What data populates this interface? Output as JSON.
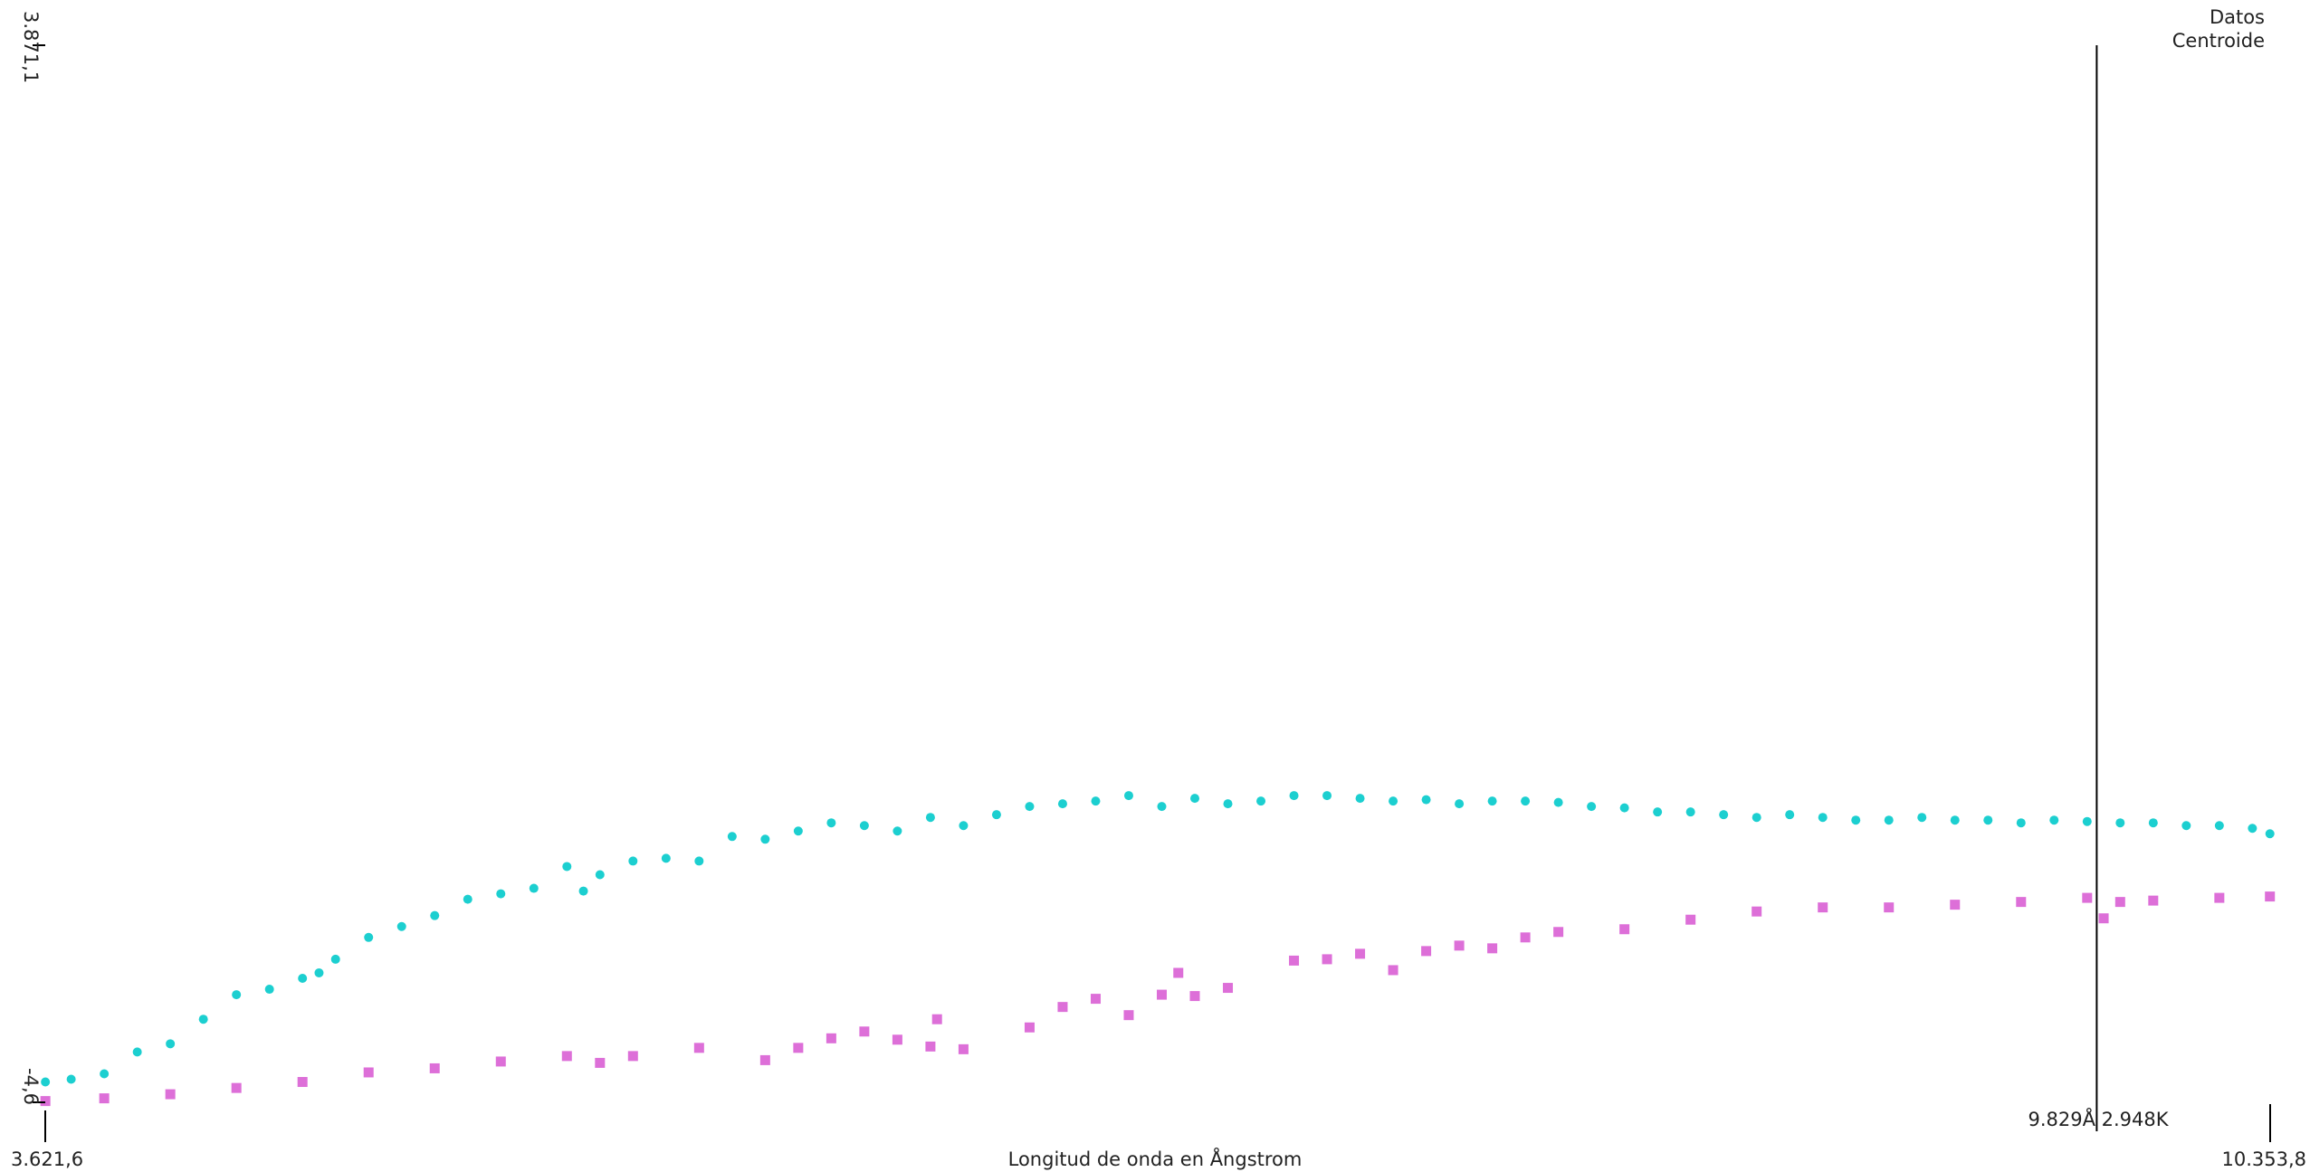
{
  "chart_data": {
    "type": "scatter",
    "title": "",
    "xlabel": "Longitud de onda en Ångstrom",
    "ylabel": "",
    "xlim": [
      3621.6,
      10353.8
    ],
    "ylim": [
      -4.6,
      3871.1
    ],
    "x_min_label": "3.621,6",
    "x_max_label": "10.353,8",
    "y_min_label": "-4,6",
    "y_max_label": "3.871,1",
    "cursor": {
      "x": 9829,
      "label": "9.829Å 2.948K"
    },
    "grid": false,
    "legend_position": "top-right",
    "series": [
      {
        "name": "Datos",
        "color": "#dd6fd8",
        "marker": "square",
        "x": [
          3622,
          3800,
          4000,
          4200,
          4400,
          4600,
          4800,
          5000,
          5200,
          5300,
          5400,
          5600,
          5800,
          5900,
          6000,
          6100,
          6200,
          6300,
          6320,
          6400,
          6600,
          6700,
          6800,
          6900,
          7000,
          7050,
          7100,
          7200,
          7400,
          7500,
          7600,
          7700,
          7800,
          7900,
          8000,
          8100,
          8200,
          8400,
          8600,
          8800,
          9000,
          9200,
          9400,
          9600,
          9800,
          9850,
          9900,
          10000,
          10200,
          10353
        ],
        "values": [
          0,
          10,
          25,
          48,
          70,
          105,
          120,
          145,
          165,
          140,
          165,
          195,
          150,
          195,
          230,
          255,
          225,
          200,
          300,
          190,
          270,
          345,
          375,
          315,
          390,
          470,
          385,
          415,
          515,
          520,
          540,
          480,
          550,
          570,
          560,
          600,
          620,
          630,
          665,
          695,
          710,
          710,
          720,
          730,
          745,
          670,
          730,
          735,
          745,
          750
        ]
      },
      {
        "name": "Centroide",
        "color": "#1ccfd0",
        "marker": "circle",
        "x": [
          3622,
          3700,
          3800,
          3900,
          4000,
          4100,
          4200,
          4300,
          4400,
          4450,
          4500,
          4600,
          4700,
          4800,
          4900,
          5000,
          5100,
          5200,
          5250,
          5300,
          5400,
          5500,
          5600,
          5700,
          5800,
          5900,
          6000,
          6100,
          6200,
          6300,
          6400,
          6500,
          6600,
          6700,
          6800,
          6900,
          7000,
          7100,
          7200,
          7300,
          7400,
          7500,
          7600,
          7700,
          7800,
          7900,
          8000,
          8100,
          8200,
          8300,
          8400,
          8500,
          8600,
          8700,
          8800,
          8900,
          9000,
          9100,
          9200,
          9300,
          9400,
          9500,
          9600,
          9700,
          9800,
          9900,
          10000,
          10100,
          10200,
          10300,
          10353
        ],
        "values": [
          70,
          80,
          100,
          180,
          210,
          300,
          390,
          410,
          450,
          470,
          520,
          600,
          640,
          680,
          740,
          760,
          780,
          860,
          770,
          830,
          880,
          890,
          880,
          970,
          960,
          990,
          1020,
          1010,
          990,
          1040,
          1010,
          1050,
          1080,
          1090,
          1100,
          1120,
          1080,
          1110,
          1090,
          1100,
          1120,
          1120,
          1110,
          1100,
          1105,
          1090,
          1100,
          1100,
          1095,
          1080,
          1075,
          1060,
          1060,
          1050,
          1040,
          1050,
          1040,
          1030,
          1030,
          1040,
          1030,
          1030,
          1020,
          1030,
          1025,
          1020,
          1020,
          1010,
          1010,
          1000,
          980
        ]
      }
    ]
  }
}
